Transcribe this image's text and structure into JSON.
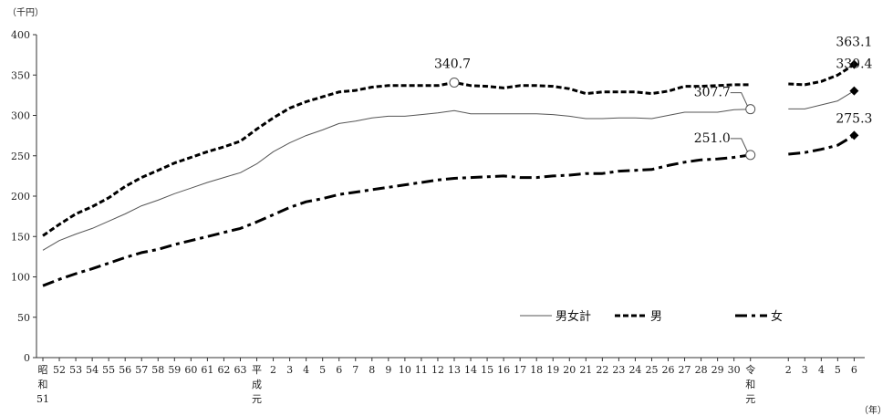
{
  "chart_data": {
    "type": "line",
    "title": "",
    "y_unit": "（千円）",
    "x_unit": "（年）",
    "ylim": [
      0,
      400
    ],
    "yticks": [
      0,
      50,
      100,
      150,
      200,
      250,
      300,
      350,
      400
    ],
    "x": [
      "昭和51",
      "52",
      "53",
      "54",
      "55",
      "56",
      "57",
      "58",
      "59",
      "60",
      "61",
      "62",
      "63",
      "平成元",
      "2",
      "3",
      "4",
      "5",
      "6",
      "7",
      "8",
      "9",
      "10",
      "11",
      "12",
      "13",
      "14",
      "15",
      "16",
      "17",
      "18",
      "19",
      "20",
      "21",
      "22",
      "23",
      "24",
      "25",
      "26",
      "27",
      "28",
      "29",
      "30",
      "令和元",
      "2",
      "3",
      "4",
      "5",
      "6"
    ],
    "x_labels": [
      [
        "昭",
        "和",
        "51"
      ],
      [
        "52"
      ],
      [
        "53"
      ],
      [
        "54"
      ],
      [
        "55"
      ],
      [
        "56"
      ],
      [
        "57"
      ],
      [
        "58"
      ],
      [
        "59"
      ],
      [
        "60"
      ],
      [
        "61"
      ],
      [
        "62"
      ],
      [
        "63"
      ],
      [
        "平",
        "成",
        "元"
      ],
      [
        "2"
      ],
      [
        "3"
      ],
      [
        "4"
      ],
      [
        "5"
      ],
      [
        "6"
      ],
      [
        "7"
      ],
      [
        "8"
      ],
      [
        "9"
      ],
      [
        "10"
      ],
      [
        "11"
      ],
      [
        "12"
      ],
      [
        "13"
      ],
      [
        "14"
      ],
      [
        "15"
      ],
      [
        "16"
      ],
      [
        "17"
      ],
      [
        "18"
      ],
      [
        "19"
      ],
      [
        "20"
      ],
      [
        "21"
      ],
      [
        "22"
      ],
      [
        "23"
      ],
      [
        "24"
      ],
      [
        "25"
      ],
      [
        "26"
      ],
      [
        "27"
      ],
      [
        "28"
      ],
      [
        "29"
      ],
      [
        "30"
      ],
      [
        "令",
        "和",
        "元"
      ],
      [
        "2"
      ],
      [
        "3"
      ],
      [
        "4"
      ],
      [
        "5"
      ],
      [
        "6"
      ]
    ],
    "series": [
      {
        "name": "男女計",
        "style": "solid",
        "values": [
          133,
          145,
          153,
          160,
          169,
          178,
          188,
          195,
          203,
          210,
          217,
          223,
          229,
          240,
          255,
          266,
          275,
          282,
          290,
          293,
          297,
          299,
          299,
          301,
          303,
          306,
          302,
          302,
          302,
          302,
          302,
          301,
          299,
          296,
          296,
          297,
          297,
          296,
          300,
          304,
          304,
          304,
          307,
          307.7,
          308,
          308,
          313,
          318,
          330.4
        ]
      },
      {
        "name": "男",
        "style": "dashed",
        "values": [
          151,
          165,
          178,
          187,
          198,
          212,
          223,
          232,
          241,
          248,
          255,
          261,
          268,
          283,
          297,
          309,
          317,
          323,
          329,
          331,
          335,
          337,
          337,
          337,
          337,
          340.7,
          337,
          336,
          334,
          337,
          337,
          336,
          333,
          327,
          329,
          329,
          329,
          327,
          330,
          336,
          336,
          337,
          338,
          338,
          339,
          338,
          342,
          350,
          363.1
        ]
      },
      {
        "name": "女",
        "style": "dash-dot",
        "values": [
          89,
          97,
          104,
          110,
          117,
          124,
          130,
          134,
          140,
          145,
          150,
          155,
          160,
          168,
          177,
          186,
          193,
          197,
          202,
          205,
          208,
          211,
          214,
          217,
          220,
          222,
          223,
          224,
          225,
          223,
          223,
          225,
          226,
          228,
          228,
          231,
          232,
          233,
          238,
          242,
          245,
          246,
          248,
          251.0,
          252,
          254,
          258,
          263,
          275.3
        ]
      }
    ],
    "annotations": [
      {
        "text": "340.7",
        "series": "男",
        "x": "13",
        "value": 340.7,
        "marker": "circle"
      },
      {
        "text": "307.7",
        "series": "男女計",
        "x": "令和元",
        "value": 307.7,
        "marker": "circle"
      },
      {
        "text": "251.0",
        "series": "女",
        "x": "令和元",
        "value": 251.0,
        "marker": "circle"
      },
      {
        "text": "363.1",
        "series": "男",
        "x": "6",
        "value": 363.1,
        "marker": "diamond"
      },
      {
        "text": "330.4",
        "series": "男女計",
        "x": "6",
        "value": 330.4,
        "marker": "diamond"
      },
      {
        "text": "275.3",
        "series": "女",
        "x": "6",
        "value": 275.3,
        "marker": "diamond"
      }
    ],
    "legend_position": "bottom-right",
    "grid": false
  }
}
